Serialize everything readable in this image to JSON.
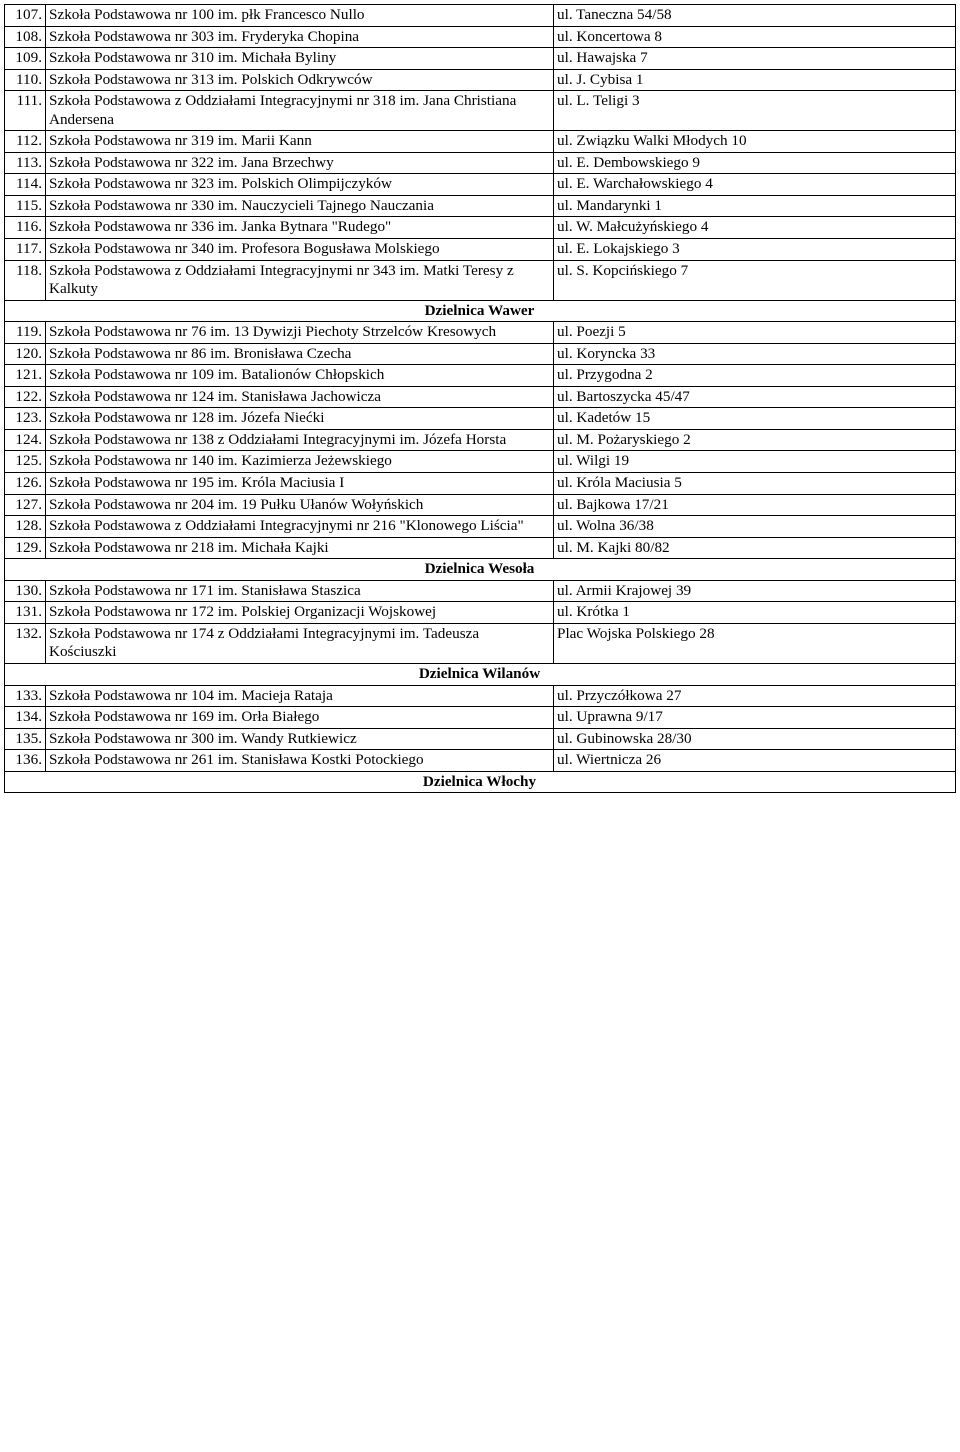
{
  "rows": [
    {
      "n": "107.",
      "name": "Szkoła Podstawowa nr 100 im. płk Francesco Nullo",
      "addr": "ul. Taneczna 54/58"
    },
    {
      "n": "108.",
      "name": "Szkoła Podstawowa nr 303 im. Fryderyka Chopina",
      "addr": "ul. Koncertowa 8"
    },
    {
      "n": "109.",
      "name": "Szkoła Podstawowa nr 310 im. Michała Byliny",
      "addr": "ul. Hawajska 7"
    },
    {
      "n": "110.",
      "name": "Szkoła Podstawowa nr 313 im. Polskich Odkrywców",
      "addr": "ul. J. Cybisa 1"
    },
    {
      "n": "111.",
      "name": "Szkoła Podstawowa z Oddziałami Integracyjnymi nr 318 im. Jana Christiana Andersena",
      "addr": "ul. L. Teligi 3"
    },
    {
      "n": "112.",
      "name": "Szkoła Podstawowa nr 319 im. Marii Kann",
      "addr": "ul. Związku Walki Młodych 10"
    },
    {
      "n": "113.",
      "name": "Szkoła Podstawowa nr 322 im. Jana Brzechwy",
      "addr": "ul. E. Dembowskiego 9"
    },
    {
      "n": "114.",
      "name": "Szkoła Podstawowa nr 323 im. Polskich Olimpijczyków",
      "addr": "ul. E. Warchałowskiego 4"
    },
    {
      "n": "115.",
      "name": "Szkoła Podstawowa nr 330 im. Nauczycieli Tajnego Nauczania",
      "addr": "ul. Mandarynki 1"
    },
    {
      "n": "116.",
      "name": "Szkoła Podstawowa nr 336 im. Janka Bytnara \"Rudego\"",
      "addr": "ul. W. Małcużyńskiego 4"
    },
    {
      "n": "117.",
      "name": "Szkoła Podstawowa nr 340 im. Profesora Bogusława Molskiego",
      "addr": "ul. E. Lokajskiego 3"
    },
    {
      "n": "118.",
      "name": "Szkoła Podstawowa z Oddziałami Integracyjnymi nr 343 im. Matki Teresy z Kalkuty",
      "addr": "ul. S. Kopcińskiego 7"
    },
    {
      "section": "Dzielnica Wawer"
    },
    {
      "n": "119.",
      "name": "Szkoła Podstawowa nr 76 im. 13 Dywizji Piechoty Strzelców Kresowych",
      "addr": "ul. Poezji 5"
    },
    {
      "n": "120.",
      "name": "Szkoła Podstawowa nr 86 im. Bronisława Czecha",
      "addr": "ul. Koryncka 33"
    },
    {
      "n": "121.",
      "name": "Szkoła Podstawowa nr 109 im. Batalionów Chłopskich",
      "addr": "ul. Przygodna 2"
    },
    {
      "n": "122.",
      "name": "Szkoła Podstawowa nr 124 im. Stanisława Jachowicza",
      "addr": "ul. Bartoszycka 45/47"
    },
    {
      "n": "123.",
      "name": "Szkoła Podstawowa nr 128 im. Józefa Niećki",
      "addr": "ul. Kadetów 15"
    },
    {
      "n": "124.",
      "name": "Szkoła Podstawowa nr 138 z Oddziałami Integracyjnymi im. Józefa Horsta",
      "addr": "ul. M. Pożaryskiego 2"
    },
    {
      "n": "125.",
      "name": "Szkoła Podstawowa nr 140 im. Kazimierza Jeżewskiego",
      "addr": "ul. Wilgi 19"
    },
    {
      "n": "126.",
      "name": "Szkoła Podstawowa nr 195 im. Króla Maciusia I",
      "addr": "ul. Króla Maciusia 5"
    },
    {
      "n": "127.",
      "name": "Szkoła Podstawowa nr 204 im. 19 Pułku Ułanów Wołyńskich",
      "addr": "ul. Bajkowa 17/21"
    },
    {
      "n": "128.",
      "name": "Szkoła Podstawowa z Oddziałami Integracyjnymi nr 216 \"Klonowego Liścia\"",
      "addr": "ul. Wolna 36/38"
    },
    {
      "n": "129.",
      "name": "Szkoła Podstawowa nr 218 im. Michała Kajki",
      "addr": "ul. M. Kajki 80/82"
    },
    {
      "section": "Dzielnica Wesoła"
    },
    {
      "n": "130.",
      "name": "Szkoła Podstawowa nr 171 im. Stanisława Staszica",
      "addr": "ul. Armii Krajowej 39"
    },
    {
      "n": "131.",
      "name": "Szkoła Podstawowa nr 172 im. Polskiej Organizacji Wojskowej",
      "addr": "ul. Krótka 1"
    },
    {
      "n": "132.",
      "name": "Szkoła Podstawowa nr 174 z Oddziałami Integracyjnymi im. Tadeusza Kościuszki",
      "addr": "Plac Wojska Polskiego 28"
    },
    {
      "section": "Dzielnica Wilanów"
    },
    {
      "n": "133.",
      "name": "Szkoła Podstawowa nr 104 im. Macieja Rataja",
      "addr": "ul. Przyczółkowa 27"
    },
    {
      "n": "134.",
      "name": "Szkoła Podstawowa nr 169 im. Orła Białego",
      "addr": "ul. Uprawna 9/17"
    },
    {
      "n": "135.",
      "name": "Szkoła Podstawowa nr 300 im. Wandy Rutkiewicz",
      "addr": "ul. Gubinowska 28/30"
    },
    {
      "n": "136.",
      "name": "Szkoła Podstawowa nr 261 im. Stanisława Kostki Potockiego",
      "addr": "ul. Wiertnicza 26"
    },
    {
      "section": "Dzielnica Włochy"
    }
  ]
}
